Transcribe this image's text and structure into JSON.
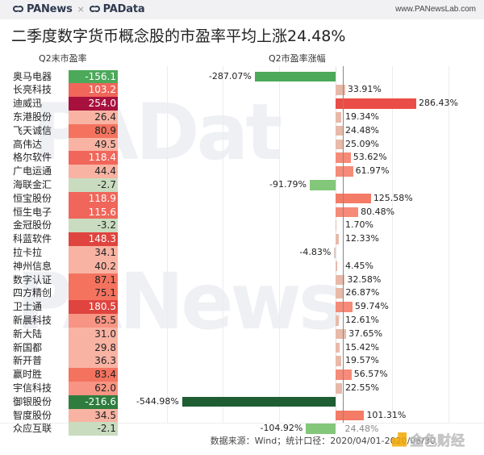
{
  "header": {
    "brand_left": "PANews",
    "brand_sep": "×",
    "brand_right": "PAData",
    "url": "www.PANewsLab.com"
  },
  "title": "二季度数字货币概念股的市盈率平均上涨24.48%",
  "columns": {
    "left": "Q2末市盈率",
    "right": "Q2市盈率涨幅"
  },
  "watermarks": {
    "top": "PADat",
    "bottom": "PANews",
    "corner": "金色财经"
  },
  "footer": "数据来源：Wind；统计口径：2020/04/01-2020/06/30",
  "average_label": "24.48%",
  "rows": [
    {
      "name": "奥马电器",
      "pe": "-156.1",
      "change": "-287.07%"
    },
    {
      "name": "长亮科技",
      "pe": "103.2",
      "change": "33.91%"
    },
    {
      "name": "迪威迅",
      "pe": "254.0",
      "change": "286.43%"
    },
    {
      "name": "东港股份",
      "pe": "26.4",
      "change": "19.34%"
    },
    {
      "name": "飞天诚信",
      "pe": "80.9",
      "change": "24.48%"
    },
    {
      "name": "高伟达",
      "pe": "49.5",
      "change": "25.09%"
    },
    {
      "name": "格尔软件",
      "pe": "118.4",
      "change": "53.62%"
    },
    {
      "name": "广电运通",
      "pe": "44.4",
      "change": "61.97%"
    },
    {
      "name": "海联金汇",
      "pe": "-2.7",
      "change": "-91.79%"
    },
    {
      "name": "恒宝股份",
      "pe": "118.9",
      "change": "125.58%"
    },
    {
      "name": "恒生电子",
      "pe": "115.6",
      "change": "80.48%"
    },
    {
      "name": "金冠股份",
      "pe": "-3.2",
      "change": "1.70%"
    },
    {
      "name": "科蓝软件",
      "pe": "148.3",
      "change": "12.33%"
    },
    {
      "name": "拉卡拉",
      "pe": "34.1",
      "change": "-4.83%"
    },
    {
      "name": "神州信息",
      "pe": "40.2",
      "change": "4.45%"
    },
    {
      "name": "数字认证",
      "pe": "87.1",
      "change": "32.58%"
    },
    {
      "name": "四方精创",
      "pe": "75.1",
      "change": "26.87%"
    },
    {
      "name": "卫士通",
      "pe": "180.5",
      "change": "59.74%"
    },
    {
      "name": "新晨科技",
      "pe": "65.5",
      "change": "12.61%"
    },
    {
      "name": "新大陆",
      "pe": "31.0",
      "change": "37.65%"
    },
    {
      "name": "新国都",
      "pe": "29.8",
      "change": "15.42%"
    },
    {
      "name": "新开普",
      "pe": "36.3",
      "change": "19.57%"
    },
    {
      "name": "赢时胜",
      "pe": "83.4",
      "change": "56.57%"
    },
    {
      "name": "宇信科技",
      "pe": "62.0",
      "change": "22.55%"
    },
    {
      "name": "御银股份",
      "pe": "-216.6",
      "change": "-544.98%"
    },
    {
      "name": "智度股份",
      "pe": "34.5",
      "change": "101.31%"
    },
    {
      "name": "众应互联",
      "pe": "-2.1",
      "change": "-104.92%"
    }
  ],
  "colors": {
    "pe_high": "#a8103e",
    "pe_mid": "#f4735f",
    "pe_low": "#f8b3a3",
    "pe_neg_small": "#c9dcc0",
    "pe_neg_large": "#2e7d3f",
    "bar_pos_high": "#ea4d45",
    "bar_pos": "#f58b78",
    "bar_pos_low": "#e8b9a8",
    "bar_neg_large": "#1f5e33",
    "bar_neg": "#4ca95a",
    "bar_neg_small": "#83c77a",
    "avg_line": "#888888"
  },
  "chart_data": [
    {
      "type": "heatmap",
      "title": "Q2末市盈率",
      "categories": [
        "奥马电器",
        "长亮科技",
        "迪威迅",
        "东港股份",
        "飞天诚信",
        "高伟达",
        "格尔软件",
        "广电运通",
        "海联金汇",
        "恒宝股份",
        "恒生电子",
        "金冠股份",
        "科蓝软件",
        "拉卡拉",
        "神州信息",
        "数字认证",
        "四方精创",
        "卫士通",
        "新晨科技",
        "新大陆",
        "新国都",
        "新开普",
        "赢时胜",
        "宇信科技",
        "御银股份",
        "智度股份",
        "众应互联"
      ],
      "values": [
        -156.1,
        103.2,
        254.0,
        26.4,
        80.9,
        49.5,
        118.4,
        44.4,
        -2.7,
        118.9,
        115.6,
        -3.2,
        148.3,
        34.1,
        40.2,
        87.1,
        75.1,
        180.5,
        65.5,
        31.0,
        29.8,
        36.3,
        83.4,
        62.0,
        -216.6,
        34.5,
        -2.1
      ]
    },
    {
      "type": "bar",
      "orientation": "horizontal",
      "title": "Q2市盈率涨幅",
      "categories": [
        "奥马电器",
        "长亮科技",
        "迪威迅",
        "东港股份",
        "飞天诚信",
        "高伟达",
        "格尔软件",
        "广电运通",
        "海联金汇",
        "恒宝股份",
        "恒生电子",
        "金冠股份",
        "科蓝软件",
        "拉卡拉",
        "神州信息",
        "数字认证",
        "四方精创",
        "卫士通",
        "新晨科技",
        "新大陆",
        "新国都",
        "新开普",
        "赢时胜",
        "宇信科技",
        "御银股份",
        "智度股份",
        "众应互联"
      ],
      "values": [
        -287.07,
        33.91,
        286.43,
        19.34,
        24.48,
        25.09,
        53.62,
        61.97,
        -91.79,
        125.58,
        80.48,
        1.7,
        12.33,
        -4.83,
        4.45,
        32.58,
        26.87,
        59.74,
        12.61,
        37.65,
        15.42,
        19.57,
        56.57,
        22.55,
        -544.98,
        101.31,
        -104.92
      ],
      "unit": "%",
      "reference_line": {
        "value": 24.48,
        "label": "24.48%"
      },
      "xlim": [
        -600,
        500
      ],
      "grid": true,
      "grid_step": 200
    }
  ]
}
